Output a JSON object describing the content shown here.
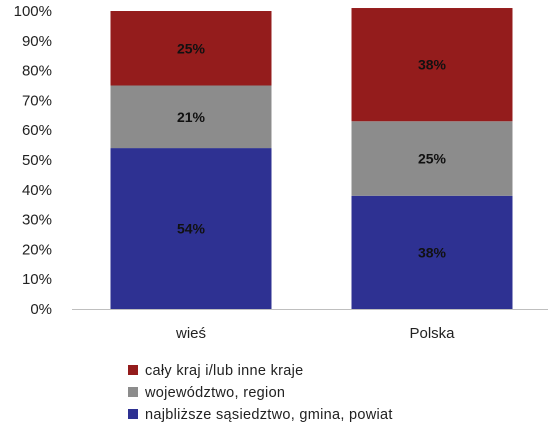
{
  "chart_data": {
    "type": "bar",
    "stacked": true,
    "percent_stacked": true,
    "categories": [
      "wieś",
      "Polska"
    ],
    "series": [
      {
        "name": "najbliższe sąsiedztwo, gmina, powiat",
        "values": [
          54,
          38
        ],
        "labels": [
          "54%",
          "38%"
        ],
        "color": "#2E3192"
      },
      {
        "name": "województwo, region",
        "values": [
          21,
          25
        ],
        "labels": [
          "21%",
          "25%"
        ],
        "color": "#8C8C8C"
      },
      {
        "name": "cały kraj i/lub inne kraje",
        "values": [
          25,
          38
        ],
        "labels": [
          "25%",
          "38%"
        ],
        "color": "#941C1C"
      }
    ],
    "ylim": [
      0,
      100
    ],
    "y_ticks": [
      {
        "value": 0,
        "label": "0%"
      },
      {
        "value": 10,
        "label": "10%"
      },
      {
        "value": 20,
        "label": "20%"
      },
      {
        "value": 30,
        "label": "30%"
      },
      {
        "value": 40,
        "label": "40%"
      },
      {
        "value": 50,
        "label": "50%"
      },
      {
        "value": 60,
        "label": "60%"
      },
      {
        "value": 70,
        "label": "70%"
      },
      {
        "value": 80,
        "label": "80%"
      },
      {
        "value": 90,
        "label": "90%"
      },
      {
        "value": 100,
        "label": "100%"
      }
    ],
    "grid": false,
    "legend": {
      "position": "bottom-left",
      "order": [
        "cały kraj i/lub inne kraje",
        "województwo, region",
        "najbliższe sąsiedztwo, gmina, powiat"
      ]
    },
    "axis_color": "#BFBFBF"
  }
}
